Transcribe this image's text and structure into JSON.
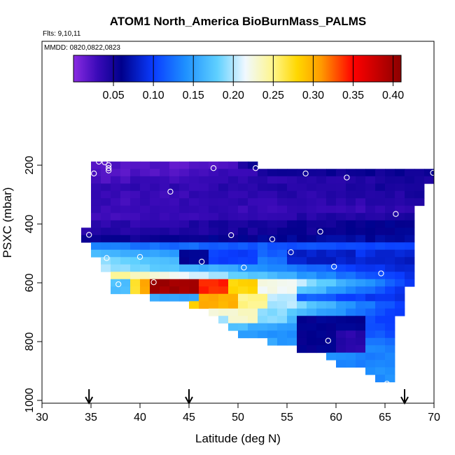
{
  "chart_data": {
    "type": "heatmap",
    "title": "ATOM1 North_America BioBurnMass_PALMS",
    "flights_label": "Flts: 9,10,11",
    "dates_label": "MMDD: 0820,0822,0823",
    "xlabel": "Latitude (deg N)",
    "ylabel": "PSXC (mbar)",
    "xlim": [
      30,
      70
    ],
    "ylim": [
      1000,
      60
    ],
    "y_reversed": true,
    "x_ticks": [
      30,
      35,
      40,
      45,
      50,
      55,
      60,
      65,
      70
    ],
    "y_ticks": [
      200,
      400,
      600,
      800,
      1000
    ],
    "grid": false,
    "colorbar": {
      "position": "top-inside",
      "range": [
        0.0,
        0.41
      ],
      "ticks": [
        0.05,
        0.1,
        0.15,
        0.2,
        0.25,
        0.3,
        0.35,
        0.4
      ],
      "tick_labels": [
        "0.05",
        "0.10",
        "0.15",
        "0.20",
        "0.25",
        "0.30",
        "0.35",
        "0.40"
      ],
      "stops": [
        {
          "v": 0.0,
          "color": "#8a2be2"
        },
        {
          "v": 0.03,
          "color": "#3a0ab8"
        },
        {
          "v": 0.06,
          "color": "#00008b"
        },
        {
          "v": 0.1,
          "color": "#0a3cff"
        },
        {
          "v": 0.14,
          "color": "#1e90ff"
        },
        {
          "v": 0.18,
          "color": "#5fd0ff"
        },
        {
          "v": 0.215,
          "color": "#f0f8ff"
        },
        {
          "v": 0.25,
          "color": "#fff68a"
        },
        {
          "v": 0.28,
          "color": "#ffd700"
        },
        {
          "v": 0.31,
          "color": "#ff9a00"
        },
        {
          "v": 0.35,
          "color": "#ff0000"
        },
        {
          "v": 0.41,
          "color": "#8b0000"
        }
      ]
    },
    "grid_cells": {
      "lat_step": 1,
      "p_step": 25,
      "rows": [
        {
          "p": 200,
          "lat0": 35,
          "lat1": 50,
          "v0": 0.02,
          "v1": 0.02
        },
        {
          "p": 200,
          "lat0": 50,
          "lat1": 52,
          "v0": 0.05,
          "v1": 0.06
        },
        {
          "p": 225,
          "lat0": 35,
          "lat1": 52,
          "v0": 0.02,
          "v1": 0.03
        },
        {
          "p": 225,
          "lat0": 52,
          "lat1": 70,
          "v0": 0.05,
          "v1": 0.055
        },
        {
          "p": 250,
          "lat0": 35,
          "lat1": 70,
          "v0": 0.025,
          "v1": 0.05
        },
        {
          "p": 275,
          "lat0": 35,
          "lat1": 69,
          "v0": 0.03,
          "v1": 0.05
        },
        {
          "p": 300,
          "lat0": 35,
          "lat1": 69,
          "v0": 0.03,
          "v1": 0.045
        },
        {
          "p": 325,
          "lat0": 35,
          "lat1": 69,
          "v0": 0.03,
          "v1": 0.04
        },
        {
          "p": 350,
          "lat0": 35,
          "lat1": 68,
          "v0": 0.03,
          "v1": 0.035
        },
        {
          "p": 375,
          "lat0": 35,
          "lat1": 68,
          "v0": 0.03,
          "v1": 0.045
        },
        {
          "p": 400,
          "lat0": 35,
          "lat1": 68,
          "v0": 0.035,
          "v1": 0.06
        },
        {
          "p": 425,
          "lat0": 34,
          "lat1": 68,
          "v0": 0.04,
          "v1": 0.06
        },
        {
          "p": 450,
          "lat0": 34,
          "lat1": 68,
          "v0": 0.05,
          "v1": 0.07
        },
        {
          "p": 475,
          "lat0": 35,
          "lat1": 68,
          "v0": 0.13,
          "v1": 0.1
        },
        {
          "p": 500,
          "lat0": 35,
          "lat1": 68,
          "v0": 0.17,
          "v1": 0.08
        },
        {
          "p": 525,
          "lat0": 36,
          "lat1": 68,
          "v0": 0.19,
          "v1": 0.07
        },
        {
          "p": 550,
          "lat0": 36,
          "lat1": 68,
          "v0": 0.2,
          "v1": 0.08
        },
        {
          "p": 575,
          "lat0": 37,
          "lat1": 68,
          "v0": 0.25,
          "v1": 0.09
        },
        {
          "p": 600,
          "lat0": 37,
          "lat1": 68,
          "v0": 0.38,
          "v1": 0.1
        },
        {
          "p": 625,
          "lat0": 37,
          "lat1": 67,
          "v0": 0.32,
          "v1": 0.1
        },
        {
          "p": 650,
          "lat0": 41,
          "lat1": 67,
          "v0": 0.16,
          "v1": 0.09
        },
        {
          "p": 675,
          "lat0": 45,
          "lat1": 67,
          "v0": 0.28,
          "v1": 0.1
        },
        {
          "p": 700,
          "lat0": 47,
          "lat1": 67,
          "v0": 0.23,
          "v1": 0.1
        },
        {
          "p": 725,
          "lat0": 48,
          "lat1": 66,
          "v0": 0.2,
          "v1": 0.1
        },
        {
          "p": 750,
          "lat0": 49,
          "lat1": 66,
          "v0": 0.17,
          "v1": 0.1
        },
        {
          "p": 775,
          "lat0": 50,
          "lat1": 66,
          "v0": 0.15,
          "v1": 0.11
        },
        {
          "p": 800,
          "lat0": 53,
          "lat1": 66,
          "v0": 0.15,
          "v1": 0.12
        },
        {
          "p": 825,
          "lat0": 56,
          "lat1": 66,
          "v0": 0.14,
          "v1": 0.13
        },
        {
          "p": 850,
          "lat0": 59,
          "lat1": 66,
          "v0": 0.14,
          "v1": 0.13
        },
        {
          "p": 875,
          "lat0": 60,
          "lat1": 66,
          "v0": 0.14,
          "v1": 0.13
        },
        {
          "p": 900,
          "lat0": 63,
          "lat1": 66,
          "v0": 0.14,
          "v1": 0.14
        },
        {
          "p": 925,
          "lat0": 64,
          "lat1": 66,
          "v0": 0.14,
          "v1": 0.14
        }
      ],
      "hotspots": [
        {
          "lat0": 41,
          "lat1": 46,
          "p0": 590,
          "p1": 640,
          "v": 0.4
        },
        {
          "lat0": 46,
          "lat1": 49,
          "p0": 590,
          "p1": 640,
          "v": 0.34
        },
        {
          "lat0": 49,
          "lat1": 52,
          "p0": 590,
          "p1": 640,
          "v": 0.28
        },
        {
          "lat0": 40,
          "lat1": 41,
          "p0": 590,
          "p1": 640,
          "v": 0.3
        },
        {
          "lat0": 37,
          "lat1": 39,
          "p0": 590,
          "p1": 640,
          "v": 0.17
        },
        {
          "lat0": 39,
          "lat1": 40,
          "p0": 590,
          "p1": 640,
          "v": 0.27
        },
        {
          "lat0": 52,
          "lat1": 56,
          "p0": 590,
          "p1": 640,
          "v": 0.22
        },
        {
          "lat0": 46,
          "lat1": 50,
          "p0": 640,
          "p1": 690,
          "v": 0.3
        },
        {
          "lat0": 50,
          "lat1": 53,
          "p0": 640,
          "p1": 690,
          "v": 0.25
        },
        {
          "lat0": 53,
          "lat1": 56,
          "p0": 640,
          "p1": 690,
          "v": 0.2
        },
        {
          "lat0": 49,
          "lat1": 52,
          "p0": 690,
          "p1": 740,
          "v": 0.23
        },
        {
          "lat0": 52,
          "lat1": 55,
          "p0": 690,
          "p1": 740,
          "v": 0.19
        },
        {
          "lat0": 44,
          "lat1": 47,
          "p0": 490,
          "p1": 540,
          "v": 0.06
        },
        {
          "lat0": 47,
          "lat1": 52,
          "p0": 490,
          "p1": 540,
          "v": 0.1
        },
        {
          "lat0": 55,
          "lat1": 62,
          "p0": 480,
          "p1": 530,
          "v": 0.08
        },
        {
          "lat0": 56,
          "lat1": 63,
          "p0": 720,
          "p1": 850,
          "v": 0.06
        },
        {
          "lat0": 60,
          "lat1": 63,
          "p0": 760,
          "p1": 840,
          "v": 0.04
        }
      ]
    },
    "points": [
      {
        "lat": 35.8,
        "p": 188
      },
      {
        "lat": 36.4,
        "p": 190
      },
      {
        "lat": 36.8,
        "p": 200
      },
      {
        "lat": 36.8,
        "p": 210
      },
      {
        "lat": 36.8,
        "p": 218
      },
      {
        "lat": 35.3,
        "p": 228
      },
      {
        "lat": 47.5,
        "p": 210
      },
      {
        "lat": 51.8,
        "p": 210
      },
      {
        "lat": 56.9,
        "p": 228
      },
      {
        "lat": 61.1,
        "p": 242
      },
      {
        "lat": 69.9,
        "p": 226
      },
      {
        "lat": 43.1,
        "p": 290
      },
      {
        "lat": 66.1,
        "p": 366
      },
      {
        "lat": 58.4,
        "p": 426
      },
      {
        "lat": 34.8,
        "p": 437
      },
      {
        "lat": 49.3,
        "p": 438
      },
      {
        "lat": 53.5,
        "p": 452
      },
      {
        "lat": 55.4,
        "p": 496
      },
      {
        "lat": 36.6,
        "p": 516
      },
      {
        "lat": 40.0,
        "p": 512
      },
      {
        "lat": 46.3,
        "p": 528
      },
      {
        "lat": 50.6,
        "p": 548
      },
      {
        "lat": 59.8,
        "p": 545
      },
      {
        "lat": 64.6,
        "p": 568
      },
      {
        "lat": 37.8,
        "p": 605
      },
      {
        "lat": 41.4,
        "p": 598
      },
      {
        "lat": 59.2,
        "p": 797
      },
      {
        "lat": 65.2,
        "p": 943
      }
    ],
    "arrows_lat": [
      34.8,
      45.0,
      67.0
    ]
  }
}
